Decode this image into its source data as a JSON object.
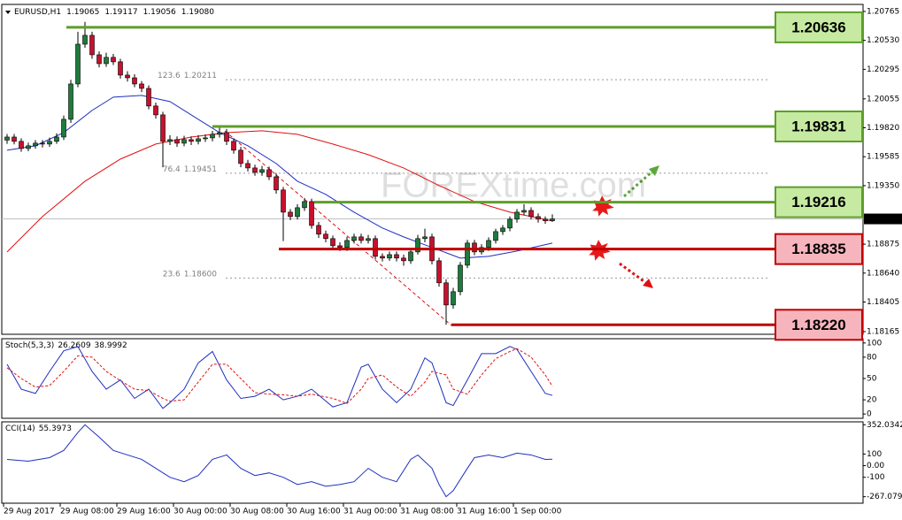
{
  "chart_data": [
    {
      "type": "candlestick",
      "symbol": "EURUSD,H1",
      "close_label": "1.19080",
      "watermark": "FOREXtime.com",
      "bull_color": "#1f7a3c",
      "bear_color": "#c8102e",
      "categories": [
        "29 Aug 2017",
        null,
        null,
        null,
        null,
        null,
        null,
        null,
        "29 Aug 08:00",
        null,
        null,
        null,
        null,
        null,
        null,
        null,
        "29 Aug 16:00",
        null,
        null,
        null,
        null,
        null,
        null,
        null,
        "30 Aug 00:00",
        null,
        null,
        null,
        null,
        null,
        null,
        null,
        "30 Aug 08:00",
        null,
        null,
        null,
        null,
        null,
        null,
        null,
        "30 Aug 16:00",
        null,
        null,
        null,
        null,
        null,
        null,
        null,
        "31 Aug 00:00",
        null,
        null,
        null,
        null,
        null,
        null,
        null,
        "31 Aug 08:00",
        null,
        null,
        null,
        null,
        null,
        null,
        null,
        "31 Aug 16:00",
        null,
        null,
        null,
        null,
        null,
        null,
        null,
        "1 Sep 00:00",
        null,
        null,
        null,
        null,
        null
      ],
      "candles": [
        [
          1.1972,
          1.1977,
          1.1969,
          1.19745
        ],
        [
          1.19745,
          1.1977,
          1.19685,
          1.1971
        ],
        [
          1.1971,
          1.19735,
          1.19625,
          1.19652
        ],
        [
          1.19652,
          1.197,
          1.1963,
          1.19674
        ],
        [
          1.19674,
          1.1972,
          1.1965,
          1.19695
        ],
        [
          1.19695,
          1.1972,
          1.1966,
          1.19688
        ],
        [
          1.19688,
          1.1974,
          1.19665,
          1.1971
        ],
        [
          1.1971,
          1.19775,
          1.1969,
          1.19745
        ],
        [
          1.19745,
          1.1992,
          1.1972,
          1.19889
        ],
        [
          1.19889,
          1.2021,
          1.1986,
          1.20176
        ],
        [
          1.20176,
          1.206,
          1.2015,
          1.20499
        ],
        [
          1.20499,
          1.2068,
          1.2047,
          1.20571
        ],
        [
          1.20571,
          1.206,
          1.2038,
          1.20413
        ],
        [
          1.20413,
          1.2044,
          1.2031,
          1.20341
        ],
        [
          1.20341,
          1.2043,
          1.20315,
          1.20392
        ],
        [
          1.20392,
          1.2042,
          1.2033,
          1.20356
        ],
        [
          1.20356,
          1.2038,
          1.2022,
          1.20248
        ],
        [
          1.20248,
          1.2028,
          1.20195,
          1.20226
        ],
        [
          1.20226,
          1.20255,
          1.2015,
          1.20176
        ],
        [
          1.20176,
          1.202,
          1.2011,
          1.2014
        ],
        [
          1.2014,
          1.20165,
          1.1997,
          1.19997
        ],
        [
          1.19997,
          1.20025,
          1.19895,
          1.19925
        ],
        [
          1.19925,
          1.1995,
          1.195,
          1.1971
        ],
        [
          1.1971,
          1.1976,
          1.1968,
          1.19724
        ],
        [
          1.19724,
          1.1975,
          1.19665,
          1.19695
        ],
        [
          1.19695,
          1.19755,
          1.1967,
          1.19724
        ],
        [
          1.19724,
          1.1975,
          1.1968,
          1.1971
        ],
        [
          1.1971,
          1.1976,
          1.19685,
          1.19731
        ],
        [
          1.19731,
          1.19765,
          1.19705,
          1.19738
        ],
        [
          1.19738,
          1.19795,
          1.1971,
          1.19767
        ],
        [
          1.19767,
          1.19831,
          1.1974,
          1.19781
        ],
        [
          1.19781,
          1.1981,
          1.1968,
          1.1971
        ],
        [
          1.1971,
          1.19735,
          1.1961,
          1.19638
        ],
        [
          1.19638,
          1.19665,
          1.195,
          1.1953
        ],
        [
          1.1953,
          1.1956,
          1.19465,
          1.19494
        ],
        [
          1.19494,
          1.1952,
          1.1943,
          1.19458
        ],
        [
          1.19458,
          1.1951,
          1.1943,
          1.1948
        ],
        [
          1.1948,
          1.19505,
          1.19395,
          1.19422
        ],
        [
          1.19422,
          1.1945,
          1.19285,
          1.19315
        ],
        [
          1.19315,
          1.1934,
          1.189,
          1.19135
        ],
        [
          1.19135,
          1.1916,
          1.1907,
          1.19099
        ],
        [
          1.19099,
          1.192,
          1.19075,
          1.19171
        ],
        [
          1.19171,
          1.1925,
          1.19145,
          1.19221
        ],
        [
          1.19221,
          1.19245,
          1.19,
          1.19027
        ],
        [
          1.19027,
          1.19055,
          1.18925,
          1.18956
        ],
        [
          1.18956,
          1.18985,
          1.1889,
          1.1892
        ],
        [
          1.1892,
          1.18945,
          1.18835,
          1.18862
        ],
        [
          1.18862,
          1.1889,
          1.1882,
          1.18848
        ],
        [
          1.18848,
          1.18935,
          1.1882,
          1.18905
        ],
        [
          1.18905,
          1.1896,
          1.1888,
          1.18934
        ],
        [
          1.18934,
          1.1896,
          1.1888,
          1.18905
        ],
        [
          1.18905,
          1.1895,
          1.1888,
          1.1892
        ],
        [
          1.1892,
          1.18945,
          1.1875,
          1.18776
        ],
        [
          1.18776,
          1.188,
          1.18735,
          1.18762
        ],
        [
          1.18762,
          1.18815,
          1.1874,
          1.1879
        ],
        [
          1.1879,
          1.18815,
          1.18735,
          1.18762
        ],
        [
          1.18762,
          1.1879,
          1.187,
          1.1874
        ],
        [
          1.1874,
          1.1884,
          1.18715,
          1.18812
        ],
        [
          1.18812,
          1.1895,
          1.1879,
          1.1892
        ],
        [
          1.1892,
          1.19,
          1.1889,
          1.18934
        ],
        [
          1.18934,
          1.1896,
          1.1871,
          1.1874
        ],
        [
          1.1874,
          1.18765,
          1.1853,
          1.18561
        ],
        [
          1.18561,
          1.1859,
          1.1822,
          1.18381
        ],
        [
          1.18381,
          1.1852,
          1.1835,
          1.18489
        ],
        [
          1.18489,
          1.1873,
          1.1846,
          1.18704
        ],
        [
          1.18704,
          1.1891,
          1.1868,
          1.18884
        ],
        [
          1.18884,
          1.1891,
          1.18785,
          1.18812
        ],
        [
          1.18812,
          1.18875,
          1.1879,
          1.18848
        ],
        [
          1.18848,
          1.1893,
          1.1882,
          1.18905
        ],
        [
          1.18905,
          1.19,
          1.1888,
          1.18977
        ],
        [
          1.18977,
          1.1903,
          1.1895,
          1.19006
        ],
        [
          1.19006,
          1.191,
          1.1898,
          1.19078
        ],
        [
          1.19078,
          1.1916,
          1.1905,
          1.19135
        ],
        [
          1.19135,
          1.192,
          1.1911,
          1.19149
        ],
        [
          1.19149,
          1.19175,
          1.19075,
          1.19099
        ],
        [
          1.19099,
          1.19125,
          1.1905,
          1.19078
        ],
        [
          1.19078,
          1.191,
          1.1904,
          1.19065
        ],
        [
          1.19065,
          1.19117,
          1.19056,
          1.1908
        ]
      ],
      "ylim": [
        1.18143,
        1.20822
      ],
      "yticks": [
        1.18165,
        1.18405,
        {
          "value": 1.1864,
          "label": "1.18640"
        },
        1.18875,
        {
          "value": 1.1935,
          "label": "1.19350"
        },
        1.19585,
        {
          "value": 1.1982,
          "label": "1.19820"
        },
        1.20055,
        1.20295,
        {
          "value": 1.2053,
          "label": "1.20530"
        },
        1.20765
      ],
      "moving_averages": [
        {
          "color": "#1f2fbf",
          "x": [
            0,
            4,
            8,
            12,
            15,
            19,
            23,
            27,
            30,
            34,
            38,
            41,
            45,
            49,
            53,
            56,
            60,
            64,
            68,
            72,
            77
          ],
          "values": [
            1.19638,
            1.19674,
            1.19781,
            1.19961,
            1.20069,
            1.20083,
            1.20033,
            1.19889,
            1.19781,
            1.19674,
            1.1953,
            1.19386,
            1.19279,
            1.19135,
            1.19006,
            1.18934,
            1.18848,
            1.18762,
            1.18776,
            1.18819,
            1.18884
          ]
        },
        {
          "color": "#e01010",
          "x": [
            0,
            5,
            11,
            16,
            21,
            26,
            31,
            36,
            41,
            46,
            51,
            56,
            61,
            66,
            71,
            77
          ],
          "values": [
            1.18812,
            1.19099,
            1.19386,
            1.19566,
            1.19688,
            1.19745,
            1.19781,
            1.19796,
            1.19767,
            1.19688,
            1.19602,
            1.19494,
            1.19351,
            1.19221,
            1.19135,
            1.19063
          ]
        }
      ],
      "levels": [
        {
          "value": 1.20636,
          "color": "#5e9e2a",
          "fill": "#c6eaa2"
        },
        {
          "value": 1.19831,
          "color": "#5e9e2a",
          "fill": "#c6eaa2"
        },
        {
          "value": 1.19216,
          "color": "#5e9e2a",
          "fill": "#c6eaa2"
        },
        {
          "value": 1.18835,
          "color": "#c00000",
          "fill": "#f6b5bd"
        },
        {
          "value": 1.1822,
          "label": "1.18220",
          "color": "#c00000",
          "fill": "#f6b5bd"
        }
      ],
      "fibo": [
        {
          "level": 123.6,
          "value": 1.20211
        },
        {
          "level": 76.4,
          "value": 1.19451
        },
        {
          "level": 23.6,
          "value": 1.186,
          "value_label": "1.18600"
        }
      ]
    },
    {
      "type": "line",
      "title": "Stoch(5,3,3)",
      "ylim": [
        -6,
        106
      ],
      "yticks": [
        0,
        20,
        50,
        80,
        100
      ],
      "series": [
        {
          "color": "#1f2fbf",
          "dash": false,
          "x": [
            0,
            2,
            4,
            6,
            8,
            10,
            12,
            14,
            16,
            18,
            20,
            22,
            23,
            25,
            27,
            29,
            31,
            33,
            35,
            37,
            39,
            41,
            43,
            46,
            48,
            50,
            51,
            53,
            55,
            57,
            59,
            60,
            62,
            63,
            65,
            67,
            69,
            71,
            72,
            74,
            76,
            77
          ],
          "values": [
            70,
            35,
            29,
            60,
            89,
            95,
            60,
            35,
            48,
            22,
            35,
            8,
            16,
            35,
            72,
            88,
            48,
            22,
            25,
            35,
            20,
            25,
            35,
            10,
            16,
            66,
            70,
            35,
            16,
            35,
            79,
            72,
            16,
            12,
            48,
            85,
            85,
            95,
            91,
            60,
            29,
            26.2609
          ]
        },
        {
          "color": "#e01010",
          "dash": true,
          "x": [
            0,
            2,
            4,
            6,
            8,
            10,
            12,
            14,
            16,
            18,
            20,
            22,
            23,
            25,
            27,
            29,
            31,
            33,
            35,
            37,
            39,
            41,
            43,
            46,
            48,
            50,
            51,
            53,
            55,
            57,
            59,
            60,
            62,
            63,
            65,
            67,
            69,
            71,
            72,
            74,
            76,
            77
          ],
          "values": [
            65,
            50,
            38,
            40,
            60,
            82,
            80,
            60,
            47,
            35,
            33,
            22,
            18,
            20,
            45,
            70,
            70,
            50,
            30,
            28,
            27,
            25,
            28,
            22,
            15,
            35,
            50,
            55,
            38,
            25,
            45,
            60,
            55,
            35,
            28,
            55,
            78,
            88,
            92,
            80,
            55,
            38.9992
          ]
        }
      ]
    },
    {
      "type": "line",
      "title": "CCI(14)",
      "ylim": [
        -323,
        377
      ],
      "yticks": [
        352.0342,
        100,
        {
          "value": 0,
          "label": "0.00"
        },
        -100,
        -267.0793
      ],
      "series": [
        {
          "color": "#1f2fbf",
          "dash": false,
          "x": [
            0,
            3,
            6,
            8,
            10,
            11,
            13,
            15,
            17,
            19,
            21,
            23,
            25,
            27,
            29,
            31,
            33,
            35,
            37,
            39,
            41,
            43,
            45,
            47,
            49,
            51,
            53,
            55,
            57,
            58,
            60,
            61,
            62,
            63,
            65,
            66,
            68,
            70,
            72,
            74,
            76,
            77
          ],
          "values": [
            54,
            38,
            69,
            131,
            285,
            352.0342,
            246,
            131,
            92,
            54,
            -23,
            -100,
            -138,
            -85,
            54,
            92,
            -23,
            -85,
            -62,
            -100,
            -162,
            -138,
            -177,
            -162,
            -138,
            -23,
            -100,
            -138,
            54,
            92,
            -23,
            -162,
            -267.0793,
            -215,
            -23,
            69,
            92,
            69,
            108,
            92,
            54,
            55.3973
          ]
        }
      ]
    }
  ]
}
